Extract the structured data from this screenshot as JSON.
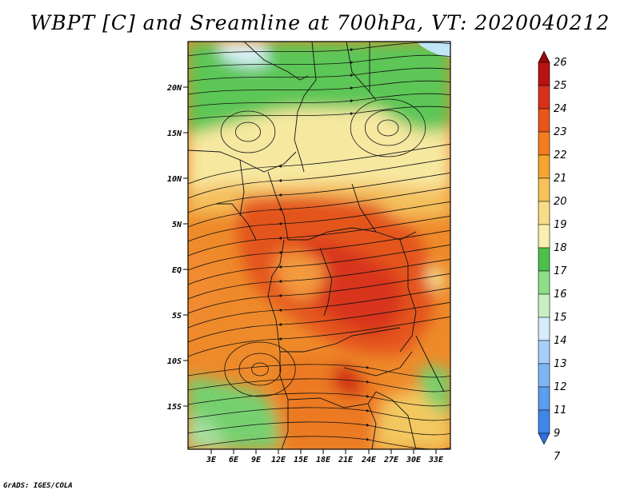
{
  "title": "WBPT [C] and Sreamline at 700hPa, VT: 2020040212",
  "footer": "GrADS: IGES/COLA",
  "map": {
    "y_axis_labels": [
      "20N",
      "15N",
      "10N",
      "5N",
      "EQ",
      "5S",
      "10S",
      "15S"
    ],
    "x_axis_labels": [
      "3E",
      "6E",
      "9E",
      "12E",
      "15E",
      "18E",
      "21E",
      "24E",
      "27E",
      "30E",
      "33E"
    ]
  },
  "colorbar": {
    "labels": [
      "7",
      "9",
      "11",
      "12",
      "13",
      "14",
      "15",
      "16",
      "17",
      "18",
      "19",
      "20",
      "21",
      "22",
      "23",
      "24",
      "25",
      "26"
    ],
    "colors": [
      "#2d6fe0",
      "#3f87e8",
      "#5a9ef0",
      "#7eb6f5",
      "#a8cef8",
      "#d6ecfb",
      "#c8f0c4",
      "#8ede86",
      "#4cc04a",
      "#f8f0b0",
      "#f6dd86",
      "#f7c25a",
      "#f5a530",
      "#f07d1e",
      "#e85518",
      "#d8301a",
      "#bb1212",
      "#9a0808"
    ]
  },
  "chart_data": {
    "type": "heatmap",
    "title": "WBPT [C] and Sreamline at 700hPa, VT: 2020040212",
    "variable": "Wet-bulb potential temperature (C) with 700hPa streamlines",
    "level": "700hPa",
    "valid_time": "2020040212",
    "x_ticks": [
      "3E",
      "6E",
      "9E",
      "12E",
      "15E",
      "18E",
      "21E",
      "24E",
      "27E",
      "30E",
      "33E"
    ],
    "y_ticks": [
      "20N",
      "15N",
      "10N",
      "5N",
      "EQ",
      "5S",
      "10S",
      "15S"
    ],
    "colorbar_values": [
      7,
      9,
      11,
      12,
      13,
      14,
      15,
      16,
      17,
      18,
      19,
      20,
      21,
      22,
      23,
      24,
      25,
      26
    ]
  }
}
